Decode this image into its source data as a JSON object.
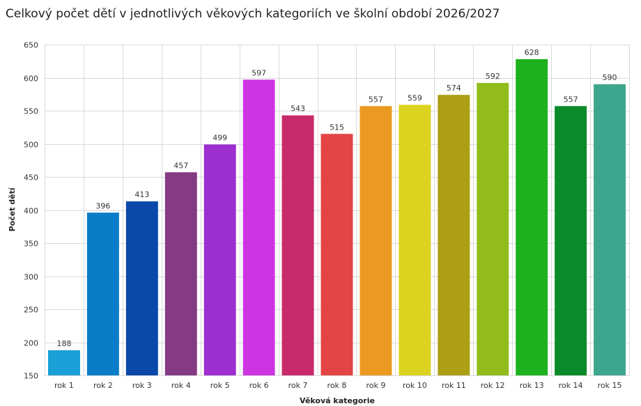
{
  "chart_data": {
    "type": "bar",
    "title": "Celkový počet dětí v jednotlivých věkových kategoriích ve školní období 2026/2027",
    "xlabel": "Věková kategorie",
    "ylabel": "Počet dětí",
    "ylim": [
      150,
      650
    ],
    "yticks": [
      150,
      200,
      250,
      300,
      350,
      400,
      450,
      500,
      550,
      600,
      650
    ],
    "grid": true,
    "categories": [
      "rok 1",
      "rok 2",
      "rok 3",
      "rok 4",
      "rok 5",
      "rok 6",
      "rok 7",
      "rok 8",
      "rok 9",
      "rok 10",
      "rok 11",
      "rok 12",
      "rok 13",
      "rok 14",
      "rok 15"
    ],
    "values": [
      188,
      396,
      413,
      457,
      499,
      597,
      543,
      515,
      557,
      559,
      574,
      592,
      628,
      557,
      590
    ],
    "colors": [
      "#1a9fd6",
      "#0a7cc8",
      "#0a48aa",
      "#853a84",
      "#9d2ed0",
      "#cd35e3",
      "#c8296a",
      "#e34545",
      "#ea9a20",
      "#dcd321",
      "#ac9f14",
      "#92bc1c",
      "#1db21d",
      "#0b8a2a",
      "#3fa68e"
    ]
  }
}
